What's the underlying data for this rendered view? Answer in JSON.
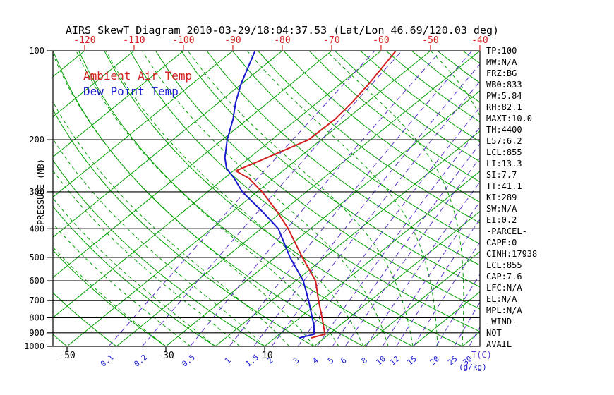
{
  "title": "AIRS SkewT Diagram 2010-03-29/18:04:37.53 (Lat/Lon 46.69/120.03 deg)",
  "legend": {
    "temp": "Ambient Air Temp",
    "dew": "Dew Point Temp"
  },
  "axes": {
    "y_label": "PRESSURE (MB)",
    "pressure_ticks": [
      100,
      200,
      300,
      400,
      500,
      600,
      700,
      800,
      900,
      1000
    ],
    "top_temp_ticks": [
      -120,
      -110,
      -100,
      -90,
      -80,
      -70,
      -60,
      -50,
      -40
    ],
    "bottom_temp_ticks": [
      -50,
      -30,
      -10
    ],
    "x_unit_label": "T(C)",
    "mixing_ratio_ticks": [
      0.1,
      0.2,
      0.5,
      1,
      1.5,
      2,
      3,
      4,
      5,
      6,
      8,
      10,
      12,
      15,
      20,
      25,
      30
    ],
    "mixing_ratio_unit": "(g/kg)"
  },
  "colors": {
    "grid_green": "#00a000",
    "mixing_indigo": "#5c33cc",
    "temp_red": "#d42020",
    "dew_blue": "#1818cc",
    "label_red": "#d42020",
    "label_blue": "#1818cc",
    "isobar_black": "#000000"
  },
  "stats": {
    "lines": [
      "TP:100",
      "MW:N/A",
      "FRZ:BG",
      "WB0:833",
      "PW:5.84",
      "RH:82.1",
      "MAXT:10.0",
      "TH:4400",
      "L57:6.2",
      "LCL:855",
      "LI:13.3",
      "SI:7.7",
      "TT:41.1",
      "KI:289",
      "SW:N/A",
      "EI:0.2",
      "-PARCEL-",
      "CAPE:0",
      "CINH:17938",
      "LCL:855",
      "CAP:7.6",
      "LFC:N/A",
      "EL:N/A",
      "MPL:N/A",
      "-WIND-",
      "NOT",
      "AVAIL"
    ]
  },
  "chart_data": {
    "type": "line",
    "title": "AIRS SkewT Diagram 2010-03-29/18:04:37.53 (Lat/Lon 46.69/120.03 deg)",
    "x_axis": {
      "label": "T(C)",
      "skewed": true,
      "top_ticks": [
        -120,
        -110,
        -100,
        -90,
        -80,
        -70,
        -60,
        -50,
        -40
      ]
    },
    "y_axis": {
      "label": "PRESSURE (MB)",
      "scale": "log",
      "range": [
        100,
        1000
      ],
      "ticks": [
        100,
        200,
        300,
        400,
        500,
        600,
        700,
        800,
        900,
        1000
      ]
    },
    "series": [
      {
        "name": "Ambient Air Temp",
        "color": "#d42020",
        "units": {
          "pressure": "mb",
          "temperature": "C"
        },
        "points": [
          [
            935,
            -2.6
          ],
          [
            910,
            -0.8
          ],
          [
            850,
            -3.3
          ],
          [
            800,
            -5.5
          ],
          [
            700,
            -10.5
          ],
          [
            600,
            -16.0
          ],
          [
            500,
            -24.5
          ],
          [
            400,
            -34.5
          ],
          [
            350,
            -41.0
          ],
          [
            300,
            -49.0
          ],
          [
            270,
            -55.0
          ],
          [
            255,
            -59.5
          ],
          [
            230,
            -56.5
          ],
          [
            200,
            -52.5
          ],
          [
            170,
            -52.3
          ],
          [
            150,
            -53.0
          ],
          [
            130,
            -54.2
          ],
          [
            100,
            -57.0
          ]
        ]
      },
      {
        "name": "Dew Point Temp",
        "color": "#1818cc",
        "units": {
          "pressure": "mb",
          "temperature": "C"
        },
        "points": [
          [
            935,
            -5.0
          ],
          [
            910,
            -3.0
          ],
          [
            850,
            -5.2
          ],
          [
            800,
            -7.5
          ],
          [
            700,
            -12.5
          ],
          [
            600,
            -18.5
          ],
          [
            500,
            -27.0
          ],
          [
            400,
            -36.5
          ],
          [
            350,
            -44.0
          ],
          [
            300,
            -53.0
          ],
          [
            270,
            -58.0
          ],
          [
            250,
            -62.0
          ],
          [
            230,
            -65.0
          ],
          [
            200,
            -69.0
          ],
          [
            170,
            -73.0
          ],
          [
            150,
            -76.5
          ],
          [
            130,
            -80.0
          ],
          [
            100,
            -85.5
          ]
        ]
      }
    ],
    "background_lines": {
      "isotherms_C_step": 10,
      "dry_adiabats_C": [
        -50,
        180,
        10
      ],
      "moist_adiabats_C": [
        -30,
        35,
        5
      ],
      "mixing_ratio_gkg": [
        0.1,
        0.2,
        0.5,
        1,
        1.5,
        2,
        3,
        4,
        5,
        6,
        8,
        10,
        12,
        15,
        20,
        25,
        30
      ]
    }
  }
}
